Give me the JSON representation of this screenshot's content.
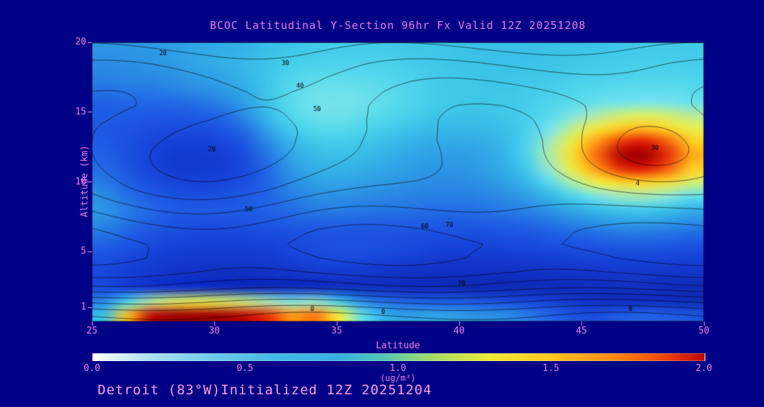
{
  "page": {
    "background": "#000086",
    "accent": "#ee7de8",
    "footer_color": "#ff9de4"
  },
  "title": "BCOC Latitudinal Y-Section 96hr  Fx Valid 12Z 20251208",
  "footer": "Detroit (83°W)Initialized 12Z 20251204",
  "axes": {
    "ylabel": "Altitude (km)",
    "xlabel": "Latitude",
    "y_ticks": [
      20,
      15,
      10,
      5,
      1
    ],
    "x_ticks": [
      25,
      30,
      35,
      40,
      45,
      50
    ],
    "y_range": [
      0,
      20
    ],
    "x_range": [
      25,
      50
    ]
  },
  "colorbar": {
    "ticks": [
      "0.0",
      "0.5",
      "1.0",
      "1.5",
      "2.0"
    ],
    "tick_values": [
      0.0,
      0.5,
      1.0,
      1.5,
      2.0
    ],
    "label": "(ug/m³)",
    "range": [
      0,
      2
    ],
    "gradient_stops": [
      [
        0.0,
        "#ffffff"
      ],
      [
        0.06,
        "#e2f4fb"
      ],
      [
        0.2,
        "#a8ddf2"
      ],
      [
        0.4,
        "#6cc9ea"
      ],
      [
        0.6,
        "#44b8e4"
      ],
      [
        0.8,
        "#38b0e0"
      ],
      [
        0.95,
        "#52c8b4"
      ],
      [
        1.1,
        "#a0dc6a"
      ],
      [
        1.3,
        "#eeea32"
      ],
      [
        1.5,
        "#ffc81e"
      ],
      [
        1.7,
        "#ff8812"
      ],
      [
        1.85,
        "#f04c0a"
      ],
      [
        2.0,
        "#c00404"
      ]
    ]
  },
  "chart_data": {
    "type": "heatmap",
    "title": "BCOC Latitudinal Y-Section 96hr  Fx Valid 12Z 20251208",
    "xlabel": "Latitude",
    "ylabel": "Altitude (km)",
    "units": "ug/m3",
    "value_range": [
      0,
      2
    ],
    "lat": [
      25,
      26,
      27,
      28,
      29,
      30,
      31,
      32,
      33,
      34,
      35,
      36,
      37,
      38,
      39,
      40,
      41,
      42,
      43,
      44,
      45,
      46,
      47,
      48,
      49,
      50
    ],
    "alt_order": "rows run from 20 km (first row) down to 0 km (last row)",
    "grid_alt20_to_0": [
      [
        0.45,
        0.45,
        0.46,
        0.48,
        0.5,
        0.52,
        0.55,
        0.6,
        0.63,
        0.65,
        0.66,
        0.66,
        0.65,
        0.64,
        0.63,
        0.62,
        0.6,
        0.6,
        0.6,
        0.61,
        0.62,
        0.63,
        0.64,
        0.65,
        0.65,
        0.65
      ],
      [
        0.42,
        0.43,
        0.45,
        0.47,
        0.5,
        0.53,
        0.57,
        0.62,
        0.66,
        0.68,
        0.69,
        0.69,
        0.68,
        0.66,
        0.64,
        0.62,
        0.61,
        0.6,
        0.61,
        0.62,
        0.64,
        0.65,
        0.66,
        0.67,
        0.67,
        0.66
      ],
      [
        0.4,
        0.41,
        0.42,
        0.44,
        0.47,
        0.5,
        0.55,
        0.63,
        0.7,
        0.73,
        0.74,
        0.73,
        0.71,
        0.68,
        0.65,
        0.63,
        0.62,
        0.62,
        0.63,
        0.64,
        0.66,
        0.68,
        0.69,
        0.7,
        0.7,
        0.69
      ],
      [
        0.36,
        0.37,
        0.38,
        0.4,
        0.43,
        0.46,
        0.52,
        0.63,
        0.73,
        0.78,
        0.79,
        0.77,
        0.74,
        0.7,
        0.66,
        0.64,
        0.63,
        0.63,
        0.65,
        0.67,
        0.7,
        0.72,
        0.74,
        0.75,
        0.75,
        0.73
      ],
      [
        0.32,
        0.33,
        0.33,
        0.34,
        0.36,
        0.4,
        0.48,
        0.62,
        0.74,
        0.8,
        0.81,
        0.79,
        0.75,
        0.7,
        0.66,
        0.64,
        0.63,
        0.64,
        0.66,
        0.7,
        0.74,
        0.78,
        0.8,
        0.82,
        0.81,
        0.78
      ],
      [
        0.3,
        0.3,
        0.29,
        0.29,
        0.3,
        0.33,
        0.42,
        0.58,
        0.72,
        0.78,
        0.79,
        0.76,
        0.72,
        0.67,
        0.63,
        0.61,
        0.61,
        0.63,
        0.67,
        0.74,
        0.85,
        0.98,
        1.1,
        1.15,
        1.1,
        1.0
      ],
      [
        0.29,
        0.28,
        0.26,
        0.25,
        0.26,
        0.28,
        0.35,
        0.5,
        0.65,
        0.72,
        0.73,
        0.7,
        0.66,
        0.61,
        0.58,
        0.56,
        0.57,
        0.6,
        0.68,
        0.82,
        1.05,
        1.3,
        1.48,
        1.52,
        1.4,
        1.2
      ],
      [
        0.3,
        0.27,
        0.24,
        0.22,
        0.22,
        0.24,
        0.29,
        0.42,
        0.56,
        0.64,
        0.66,
        0.63,
        0.59,
        0.55,
        0.52,
        0.51,
        0.52,
        0.57,
        0.7,
        0.95,
        1.3,
        1.62,
        1.85,
        1.9,
        1.75,
        1.45
      ],
      [
        0.32,
        0.27,
        0.23,
        0.2,
        0.2,
        0.21,
        0.26,
        0.37,
        0.5,
        0.58,
        0.6,
        0.58,
        0.54,
        0.5,
        0.48,
        0.47,
        0.49,
        0.55,
        0.7,
        1.0,
        1.4,
        1.75,
        1.98,
        2.0,
        1.85,
        1.55
      ],
      [
        0.34,
        0.28,
        0.23,
        0.2,
        0.2,
        0.21,
        0.25,
        0.34,
        0.46,
        0.53,
        0.55,
        0.53,
        0.5,
        0.47,
        0.45,
        0.45,
        0.47,
        0.52,
        0.65,
        0.92,
        1.28,
        1.62,
        1.86,
        1.9,
        1.75,
        1.45
      ],
      [
        0.38,
        0.31,
        0.26,
        0.23,
        0.22,
        0.23,
        0.26,
        0.33,
        0.42,
        0.48,
        0.5,
        0.48,
        0.46,
        0.44,
        0.42,
        0.42,
        0.44,
        0.48,
        0.57,
        0.75,
        1.0,
        1.25,
        1.42,
        1.45,
        1.35,
        1.12
      ],
      [
        0.42,
        0.35,
        0.3,
        0.27,
        0.26,
        0.27,
        0.29,
        0.33,
        0.39,
        0.43,
        0.44,
        0.43,
        0.41,
        0.4,
        0.39,
        0.39,
        0.4,
        0.43,
        0.48,
        0.58,
        0.72,
        0.86,
        0.95,
        0.97,
        0.9,
        0.78
      ],
      [
        0.45,
        0.38,
        0.33,
        0.3,
        0.29,
        0.29,
        0.3,
        0.32,
        0.35,
        0.38,
        0.39,
        0.38,
        0.37,
        0.36,
        0.35,
        0.35,
        0.36,
        0.38,
        0.41,
        0.46,
        0.53,
        0.6,
        0.65,
        0.66,
        0.62,
        0.55
      ],
      [
        0.42,
        0.36,
        0.31,
        0.28,
        0.27,
        0.27,
        0.28,
        0.29,
        0.31,
        0.32,
        0.33,
        0.32,
        0.31,
        0.31,
        0.3,
        0.3,
        0.31,
        0.32,
        0.34,
        0.37,
        0.41,
        0.45,
        0.48,
        0.48,
        0.46,
        0.42
      ],
      [
        0.36,
        0.31,
        0.27,
        0.25,
        0.24,
        0.24,
        0.24,
        0.25,
        0.26,
        0.27,
        0.27,
        0.27,
        0.27,
        0.26,
        0.26,
        0.26,
        0.26,
        0.27,
        0.28,
        0.3,
        0.32,
        0.34,
        0.36,
        0.36,
        0.35,
        0.33
      ],
      [
        0.3,
        0.27,
        0.24,
        0.22,
        0.21,
        0.21,
        0.21,
        0.22,
        0.24,
        0.26,
        0.27,
        0.27,
        0.26,
        0.25,
        0.23,
        0.22,
        0.22,
        0.23,
        0.24,
        0.25,
        0.26,
        0.27,
        0.28,
        0.28,
        0.27,
        0.26
      ],
      [
        0.26,
        0.23,
        0.21,
        0.19,
        0.18,
        0.18,
        0.18,
        0.19,
        0.21,
        0.23,
        0.24,
        0.23,
        0.22,
        0.2,
        0.19,
        0.18,
        0.18,
        0.18,
        0.19,
        0.2,
        0.21,
        0.22,
        0.22,
        0.22,
        0.22,
        0.21
      ],
      [
        0.24,
        0.21,
        0.19,
        0.17,
        0.16,
        0.15,
        0.15,
        0.16,
        0.17,
        0.18,
        0.19,
        0.18,
        0.17,
        0.16,
        0.15,
        0.15,
        0.15,
        0.15,
        0.16,
        0.16,
        0.17,
        0.17,
        0.18,
        0.18,
        0.17,
        0.17
      ],
      [
        0.26,
        0.22,
        0.19,
        0.17,
        0.16,
        0.15,
        0.14,
        0.14,
        0.15,
        0.15,
        0.16,
        0.15,
        0.15,
        0.14,
        0.14,
        0.13,
        0.13,
        0.13,
        0.14,
        0.14,
        0.14,
        0.15,
        0.15,
        0.15,
        0.14,
        0.14
      ],
      [
        0.4,
        0.7,
        1.0,
        1.15,
        1.2,
        1.15,
        1.05,
        0.95,
        0.85,
        0.9,
        0.65,
        0.42,
        0.35,
        0.32,
        0.3,
        0.3,
        0.28,
        0.26,
        0.24,
        0.22,
        0.18,
        0.16,
        0.15,
        0.15,
        0.15,
        0.14
      ],
      [
        0.6,
        1.5,
        1.95,
        2.0,
        2.0,
        2.0,
        1.95,
        1.85,
        1.6,
        1.7,
        1.25,
        0.75,
        0.52,
        0.48,
        0.5,
        0.47,
        0.44,
        0.42,
        0.38,
        0.32,
        0.27,
        0.26,
        0.3,
        0.32,
        0.3,
        0.28
      ]
    ],
    "colormap_stops": [
      [
        0.0,
        "#000080"
      ],
      [
        0.08,
        "#0a1e9c"
      ],
      [
        0.16,
        "#1130c4"
      ],
      [
        0.24,
        "#1846dc"
      ],
      [
        0.33,
        "#2166e6"
      ],
      [
        0.42,
        "#2a8ce4"
      ],
      [
        0.52,
        "#32ace6"
      ],
      [
        0.62,
        "#3cc4e8"
      ],
      [
        0.72,
        "#52d8ec"
      ],
      [
        0.82,
        "#78e4ea"
      ],
      [
        0.92,
        "#9ce9c8"
      ],
      [
        1.05,
        "#c8ee84"
      ],
      [
        1.25,
        "#f2ee3c"
      ],
      [
        1.45,
        "#ffcf22"
      ],
      [
        1.62,
        "#ff9414"
      ],
      [
        1.78,
        "#f4540c"
      ],
      [
        1.9,
        "#dc1a06"
      ],
      [
        2.0,
        "#a00000"
      ]
    ],
    "contour_overlay": {
      "levels": [
        0,
        10,
        20,
        30,
        40,
        50,
        60,
        70
      ],
      "line_color": "#000000",
      "base_profile_alt_value": [
        [
          0,
          -6
        ],
        [
          0.8,
          6
        ],
        [
          1.6,
          24
        ],
        [
          2.5,
          46
        ],
        [
          3.5,
          62
        ],
        [
          4.5,
          70
        ],
        [
          5.5,
          73
        ],
        [
          6.5,
          71
        ],
        [
          7.5,
          66
        ],
        [
          8.5,
          61
        ],
        [
          9.5,
          57
        ],
        [
          11,
          55
        ],
        [
          13,
          53
        ],
        [
          14.5,
          50
        ],
        [
          15.5,
          47
        ],
        [
          16.5,
          42
        ],
        [
          17.5,
          36
        ],
        [
          18.5,
          29
        ],
        [
          19.2,
          23
        ],
        [
          20,
          16
        ]
      ],
      "anomalies": [
        {
          "lat": 30.5,
          "alt": 12,
          "amp": -34,
          "slat": 3.5,
          "salt": 3.0
        },
        {
          "lat": 47.5,
          "alt": 12,
          "amp": -26,
          "slat": 2.6,
          "salt": 2.2
        }
      ],
      "wiggle": {
        "amp": 4,
        "k_lat": 0.5,
        "k_alt": 0.4,
        "phase": -12.5
      },
      "labels": [
        {
          "t": "20",
          "lat": 27.9,
          "alt": 19.2
        },
        {
          "t": "30",
          "lat": 32.9,
          "alt": 18.5
        },
        {
          "t": "40",
          "lat": 33.5,
          "alt": 16.9
        },
        {
          "t": "50",
          "lat": 34.2,
          "alt": 15.2
        },
        {
          "t": "20",
          "lat": 29.9,
          "alt": 12.3
        },
        {
          "t": "50",
          "lat": 31.4,
          "alt": 8.0
        },
        {
          "t": "60",
          "lat": 38.6,
          "alt": 6.8
        },
        {
          "t": "70",
          "lat": 39.6,
          "alt": 6.9
        },
        {
          "t": "70",
          "lat": 40.1,
          "alt": 2.7
        },
        {
          "t": "0",
          "lat": 34.0,
          "alt": 0.9
        },
        {
          "t": "0",
          "lat": 36.9,
          "alt": 0.7
        },
        {
          "t": "30",
          "lat": 48.0,
          "alt": 12.4
        },
        {
          "t": "4",
          "lat": 47.3,
          "alt": 9.9
        },
        {
          "t": "0",
          "lat": 47.0,
          "alt": 0.9
        }
      ]
    }
  }
}
